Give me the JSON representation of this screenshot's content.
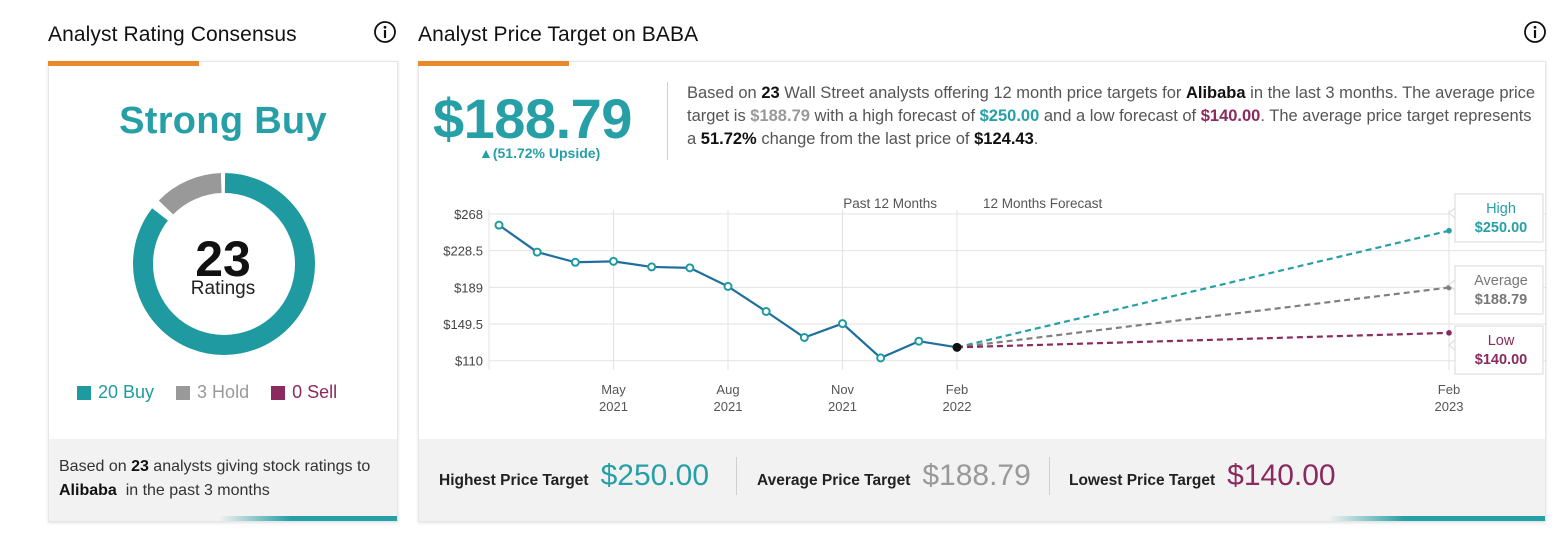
{
  "left": {
    "title": "Analyst Rating Consensus",
    "consensus": "Strong Buy",
    "total_ratings": "23",
    "ratings_label": "Ratings",
    "legend": [
      {
        "label": "20 Buy",
        "count": 20,
        "color": "#1f9aa0"
      },
      {
        "label": "3 Hold",
        "count": 3,
        "color": "#999999"
      },
      {
        "label": "0 Sell",
        "count": 0,
        "color": "#8a2a5e"
      }
    ],
    "footer_pre": "Based on ",
    "footer_count": "23",
    "footer_mid": " analysts giving stock ratings to ",
    "footer_company": "Alibaba",
    "footer_post": "  in the past 3 months"
  },
  "right": {
    "title": "Analyst Price Target on BABA",
    "avg_target": "$188.79",
    "upside": "▲(51.72% Upside)",
    "summary": {
      "p1": "Based on ",
      "analysts": "23",
      "p2": " Wall Street analysts offering 12 month price targets for ",
      "company": "Alibaba",
      "p3": " in the last 3 months. The average price target is ",
      "avg": "$188.79",
      "p4": " with a high forecast of ",
      "high": "$250.00",
      "p5": " and a low forecast of ",
      "low": "$140.00",
      "p6": ". The average price target represents a ",
      "change": "51.72%",
      "p7": " change from the last price of ",
      "last": "$124.43",
      "p8": "."
    },
    "bottom": {
      "highest_label": "Highest Price Target",
      "highest_value": "$250.00",
      "average_label": "Average Price Target",
      "average_value": "$188.79",
      "lowest_label": "Lowest Price Target",
      "lowest_value": "$140.00"
    }
  },
  "colors": {
    "teal": "#26a0a6",
    "line": "#1e6f9f",
    "grey": "#999999",
    "purple": "#8a2a5e",
    "accent": "#e8892b"
  },
  "chart_data": {
    "type": "line",
    "past_label": "Past 12 Months",
    "forecast_label": "12 Months Forecast",
    "y_ticks": [
      "$268",
      "$228.5",
      "$189",
      "$149.5",
      "$110"
    ],
    "y_values": [
      268,
      228.5,
      189,
      149.5,
      110
    ],
    "ylim": [
      100,
      268
    ],
    "x_ticks": [
      {
        "month": "May",
        "year": "2021",
        "date": "2021-05"
      },
      {
        "month": "Aug",
        "year": "2021",
        "date": "2021-08"
      },
      {
        "month": "Nov",
        "year": "2021",
        "date": "2021-11"
      },
      {
        "month": "Feb",
        "year": "2022",
        "date": "2022-02"
      },
      {
        "month": "Feb",
        "year": "2023",
        "date": "2023-02"
      }
    ],
    "series": [
      {
        "values": [
          {
            "date": "2021-02",
            "y": 256
          },
          {
            "date": "2021-03",
            "y": 227
          },
          {
            "date": "2021-04",
            "y": 216
          },
          {
            "date": "2021-05",
            "y": 217
          },
          {
            "date": "2021-06",
            "y": 211
          },
          {
            "date": "2021-07",
            "y": 210
          },
          {
            "date": "2021-08",
            "y": 190
          },
          {
            "date": "2021-09",
            "y": 163
          },
          {
            "date": "2021-10",
            "y": 135
          },
          {
            "date": "2021-11",
            "y": 150
          },
          {
            "date": "2021-12",
            "y": 113
          },
          {
            "date": "2022-01",
            "y": 131
          },
          {
            "date": "2022-02",
            "y": 124.43
          }
        ]
      }
    ],
    "forecasts": [
      {
        "label": "High",
        "value": 250.0,
        "display": "$250.00",
        "color": "#26a0a6"
      },
      {
        "label": "Average",
        "value": 188.79,
        "display": "$188.79",
        "color": "#808080"
      },
      {
        "label": "Low",
        "value": 140.0,
        "display": "$140.00",
        "color": "#8a2a5e"
      }
    ]
  }
}
